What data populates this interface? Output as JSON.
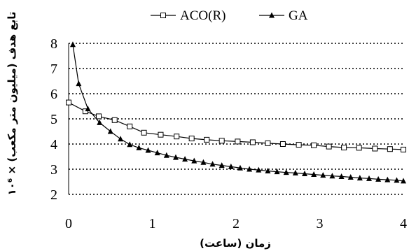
{
  "chart_data": {
    "type": "line",
    "xlabel": "زمان (ساعت)",
    "ylabel": "تابع هدف (میلیون متر مکعب) × ۱۰⁶",
    "xlim": [
      0,
      4
    ],
    "ylim": [
      2,
      8
    ],
    "xticks": [
      0,
      1,
      2,
      3,
      4
    ],
    "yticks": [
      2,
      3,
      4,
      5,
      6,
      7,
      8
    ],
    "grid": "horizontal dotted",
    "legend": "top",
    "series": [
      {
        "name": "ACO(R)",
        "marker": "open-square",
        "color": "#000000",
        "x": [
          0,
          0.2,
          0.36,
          0.55,
          0.73,
          0.9,
          1.1,
          1.29,
          1.47,
          1.65,
          1.83,
          2.02,
          2.2,
          2.38,
          2.56,
          2.75,
          2.93,
          3.11,
          3.29,
          3.47,
          3.66,
          3.84,
          4.0
        ],
        "y": [
          5.65,
          5.3,
          5.1,
          4.95,
          4.7,
          4.45,
          4.37,
          4.3,
          4.22,
          4.17,
          4.13,
          4.1,
          4.07,
          4.03,
          4.0,
          3.97,
          3.95,
          3.9,
          3.86,
          3.85,
          3.82,
          3.8,
          3.78
        ]
      },
      {
        "name": "GA",
        "marker": "filled-triangle",
        "color": "#000000",
        "x": [
          0.05,
          0.12,
          0.23,
          0.37,
          0.5,
          0.62,
          0.73,
          0.84,
          0.95,
          1.06,
          1.17,
          1.28,
          1.39,
          1.5,
          1.61,
          1.72,
          1.83,
          1.94,
          2.05,
          2.16,
          2.27,
          2.38,
          2.49,
          2.6,
          2.71,
          2.82,
          2.93,
          3.04,
          3.15,
          3.26,
          3.37,
          3.48,
          3.59,
          3.7,
          3.81,
          3.92,
          4.0
        ],
        "y": [
          7.95,
          6.4,
          5.4,
          4.85,
          4.5,
          4.2,
          3.98,
          3.85,
          3.75,
          3.65,
          3.55,
          3.47,
          3.4,
          3.33,
          3.27,
          3.2,
          3.15,
          3.1,
          3.05,
          3.0,
          2.97,
          2.93,
          2.9,
          2.87,
          2.85,
          2.82,
          2.79,
          2.76,
          2.73,
          2.71,
          2.68,
          2.65,
          2.63,
          2.6,
          2.58,
          2.56,
          2.53
        ]
      }
    ]
  }
}
